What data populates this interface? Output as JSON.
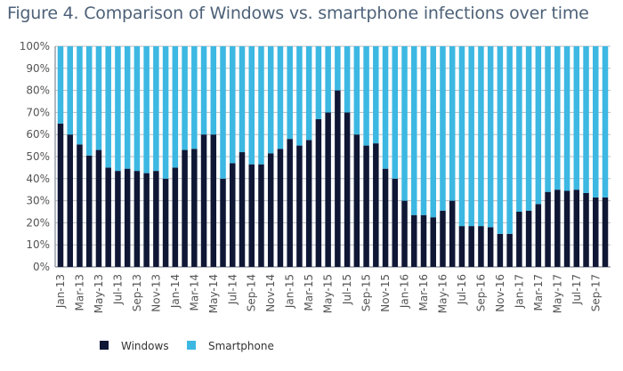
{
  "chart_data": {
    "type": "bar",
    "stacked": true,
    "percent": true,
    "title": "Figure 4. Comparison of Windows vs. smartphone infections over time",
    "xlabel": "",
    "ylabel": "",
    "ylim": [
      0,
      100
    ],
    "yticks": [
      "0%",
      "10%",
      "20%",
      "30%",
      "40%",
      "50%",
      "60%",
      "70%",
      "80%",
      "90%",
      "100%"
    ],
    "grid": true,
    "legend": "bottom",
    "categories": [
      "Jan-13",
      "Feb-13",
      "Mar-13",
      "Apr-13",
      "May-13",
      "Jun-13",
      "Jul-13",
      "Aug-13",
      "Sep-13",
      "Oct-13",
      "Nov-13",
      "Dec-13",
      "Jan-14",
      "Feb-14",
      "Mar-14",
      "Apr-14",
      "May-14",
      "Jun-14",
      "Jul-14",
      "Aug-14",
      "Sep-14",
      "Oct-14",
      "Nov-14",
      "Dec-14",
      "Jan-15",
      "Feb-15",
      "Mar-15",
      "Apr-15",
      "May-15",
      "Jun-15",
      "Jul-15",
      "Aug-15",
      "Sep-15",
      "Oct-15",
      "Nov-15",
      "Dec-15",
      "Jan-16",
      "Feb-16",
      "Mar-16",
      "Apr-16",
      "May-16",
      "Jun-16",
      "Jul-16",
      "Aug-16",
      "Sep-16",
      "Oct-16",
      "Nov-16",
      "Dec-16",
      "Jan-17",
      "Feb-17",
      "Mar-17",
      "Apr-17",
      "May-17",
      "Jun-17",
      "Jul-17",
      "Aug-17",
      "Sep-17",
      "Oct-17"
    ],
    "series": [
      {
        "name": "Windows",
        "color": "#0f1735",
        "values": [
          65,
          60,
          55.5,
          50.5,
          53,
          45,
          43.5,
          44.5,
          43.5,
          42.5,
          43.5,
          40,
          45,
          53,
          53.5,
          60,
          60,
          40,
          47,
          52,
          46.5,
          46.5,
          51.5,
          53.5,
          58,
          55,
          57.5,
          67,
          70,
          80,
          70,
          60,
          55,
          56,
          44.5,
          40,
          30,
          23.5,
          23.5,
          22.5,
          25.5,
          30,
          18.5,
          18.5,
          18.5,
          18,
          15,
          15,
          25,
          25.5,
          28.5,
          34,
          35,
          34.5,
          35,
          33.5,
          31.5,
          31.5
        ]
      },
      {
        "name": "Smartphone",
        "color": "#3cb8e2",
        "values": [
          35,
          40,
          44.5,
          49.5,
          47,
          55,
          56.5,
          55.5,
          56.5,
          57.5,
          56.5,
          60,
          55,
          47,
          46.5,
          40,
          40,
          60,
          53,
          48,
          53.5,
          53.5,
          48.5,
          46.5,
          42,
          45,
          42.5,
          33,
          30,
          20,
          30,
          40,
          45,
          44,
          55.5,
          60,
          70,
          76.5,
          76.5,
          77.5,
          74.5,
          70,
          81.5,
          81.5,
          81.5,
          82,
          85,
          85,
          75,
          74.5,
          71.5,
          66,
          65,
          65.5,
          65,
          66.5,
          68.5,
          68.5
        ]
      }
    ]
  }
}
